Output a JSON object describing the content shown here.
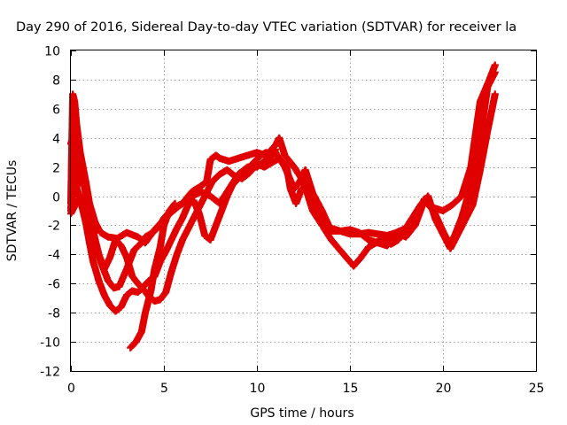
{
  "chart_data": {
    "type": "scatter",
    "title": "Day 290 of 2016, Sidereal Day-to-day VTEC variation (SDTVAR) for receiver la",
    "xlabel": "GPS time / hours",
    "ylabel": "SDTVAR / TECUs",
    "xlim": [
      0,
      25
    ],
    "ylim": [
      -12,
      10
    ],
    "xticks": [
      0,
      5,
      10,
      15,
      20,
      25
    ],
    "yticks": [
      -12,
      -10,
      -8,
      -6,
      -4,
      -2,
      0,
      2,
      4,
      6,
      8,
      10
    ],
    "grid": true,
    "marker": "plus",
    "colors": {
      "series": "#e00000",
      "grid": "#a0a0a0",
      "axis": "#000000"
    },
    "series": [
      {
        "color": "#e00000",
        "x": [
          0.0,
          0.1,
          0.2,
          0.3,
          0.5,
          0.8,
          1.0,
          1.3,
          1.6,
          2.0,
          2.5,
          3.0,
          3.6,
          4.0,
          4.5,
          5.0,
          5.5,
          6.0,
          6.5,
          7.0,
          7.3,
          7.5,
          7.8,
          8.0,
          8.5,
          9.0,
          9.5,
          10.0,
          10.5,
          11.0,
          11.2,
          11.5,
          12.0,
          12.5,
          13.0,
          13.5,
          14.0,
          14.5,
          15.0,
          15.5,
          16.0,
          16.5,
          17.0,
          17.5,
          18.0,
          18.5,
          19.0,
          19.5,
          20.0,
          20.5,
          21.0,
          21.5,
          22.0,
          22.5,
          22.8
        ],
        "y": [
          -0.5,
          7.0,
          6.5,
          5.0,
          3.0,
          1.0,
          -0.5,
          -1.8,
          -2.5,
          -2.8,
          -2.9,
          -2.5,
          -2.8,
          -3.2,
          -2.3,
          -1.6,
          -1.0,
          -0.5,
          0.3,
          0.7,
          1.0,
          2.5,
          2.8,
          2.6,
          2.4,
          2.6,
          2.8,
          3.0,
          2.8,
          3.5,
          4.0,
          2.8,
          2.0,
          1.0,
          -1.0,
          -2.0,
          -2.2,
          -2.4,
          -2.6,
          -2.6,
          -2.5,
          -2.6,
          -2.7,
          -2.5,
          -2.2,
          -1.5,
          -0.2,
          -0.8,
          -1.0,
          -0.6,
          0.0,
          2.0,
          6.5,
          8.0,
          9.0
        ]
      },
      {
        "color": "#e00000",
        "x": [
          0.0,
          0.4,
          0.8,
          1.0,
          1.3,
          1.6,
          2.0,
          2.3,
          2.6,
          3.0,
          3.4,
          3.8,
          4.0,
          4.4,
          4.8,
          5.0,
          5.5,
          6.0,
          6.5,
          7.0,
          7.5,
          8.0,
          8.5,
          9.0,
          9.5,
          10.0,
          10.5,
          11.0,
          11.5,
          12.0,
          12.3,
          12.6,
          13.0,
          13.5,
          14.0,
          14.5,
          15.0,
          15.5,
          16.0,
          16.5,
          17.0,
          17.5,
          18.0,
          18.5,
          19.0,
          19.5,
          20.0,
          20.3,
          20.6,
          21.0,
          21.3,
          21.6,
          22.0,
          22.4,
          22.8
        ],
        "y": [
          -1.2,
          -0.2,
          0.0,
          -1.0,
          -3.0,
          -4.5,
          -5.8,
          -6.3,
          -6.2,
          -5.0,
          -3.7,
          -3.2,
          -2.8,
          -2.5,
          -2.0,
          -1.5,
          -0.8,
          -0.5,
          0.0,
          0.3,
          0.0,
          -0.5,
          0.5,
          1.5,
          2.0,
          2.0,
          2.5,
          3.0,
          2.0,
          0.5,
          1.0,
          1.8,
          0.2,
          -1.0,
          -2.4,
          -2.4,
          -2.3,
          -2.5,
          -3.0,
          -3.2,
          -3.4,
          -2.5,
          -2.8,
          -2.0,
          -0.3,
          -1.0,
          -2.4,
          -3.2,
          -2.8,
          -1.5,
          -0.2,
          1.2,
          4.0,
          7.5,
          8.5
        ]
      },
      {
        "color": "#e00000",
        "x": [
          0.0,
          0.3,
          0.6,
          0.9,
          1.2,
          1.5,
          1.8,
          2.1,
          2.4,
          2.7,
          3.0,
          3.3,
          3.6,
          3.9,
          4.2,
          4.5,
          4.8,
          5.1,
          5.4,
          5.7,
          6.0,
          6.4,
          6.8,
          7.2,
          7.6,
          8.0,
          8.4,
          8.8,
          9.2,
          9.6,
          10.0,
          10.4,
          10.8,
          11.2,
          11.6,
          11.8,
          12.1,
          12.4,
          12.8,
          13.2,
          13.6,
          14.0,
          14.4,
          14.8,
          15.2,
          15.6,
          16.0,
          16.4,
          16.8,
          17.2,
          17.6,
          18.0,
          18.4,
          18.8,
          19.2,
          19.6,
          20.0,
          20.4,
          20.8,
          21.2,
          21.6,
          22.0,
          22.4,
          22.8
        ],
        "y": [
          -1.0,
          3.5,
          1.5,
          -0.5,
          -2.5,
          -4.0,
          -5.0,
          -4.2,
          -3.0,
          -3.4,
          -4.2,
          -5.5,
          -6.0,
          -6.4,
          -6.9,
          -7.2,
          -7.1,
          -6.6,
          -5.2,
          -4.0,
          -3.0,
          -2.0,
          -1.0,
          0.0,
          1.0,
          1.5,
          1.8,
          1.4,
          1.2,
          1.6,
          2.2,
          2.0,
          2.3,
          2.6,
          2.0,
          0.5,
          -0.5,
          0.5,
          0.8,
          -1.0,
          -2.2,
          -3.0,
          -3.6,
          -4.2,
          -4.8,
          -4.2,
          -3.5,
          -3.2,
          -2.8,
          -3.3,
          -3.0,
          -2.2,
          -1.4,
          -0.6,
          0.0,
          -1.6,
          -2.6,
          -3.6,
          -2.6,
          -1.6,
          -0.6,
          1.8,
          4.5,
          7.0
        ]
      },
      {
        "color": "#e00000",
        "x": [
          0.0,
          0.2,
          0.5,
          0.8,
          1.0,
          1.2,
          1.5,
          1.8,
          2.1,
          2.4,
          2.7,
          3.0,
          3.3,
          3.6,
          3.9,
          4.2,
          4.5,
          4.8,
          5.1,
          5.4,
          5.7,
          6.0,
          6.3,
          6.6,
          6.9,
          7.2,
          7.5,
          7.8,
          8.1,
          8.4,
          8.7,
          9.0,
          9.3,
          9.6,
          9.9,
          10.2,
          10.5,
          10.8,
          11.0
        ],
        "y": [
          -0.8,
          1.0,
          -0.2,
          -1.8,
          -3.2,
          -4.5,
          -5.8,
          -6.8,
          -7.5,
          -7.9,
          -7.6,
          -6.8,
          -6.5,
          -6.6,
          -6.2,
          -5.8,
          -5.5,
          -4.5,
          -3.8,
          -3.0,
          -2.2,
          -1.5,
          -0.6,
          -0.3,
          -1.2,
          -2.7,
          -3.0,
          -2.0,
          -1.0,
          0.0,
          0.8,
          1.2,
          1.6,
          2.0,
          2.4,
          2.8,
          3.0,
          2.8,
          3.2
        ]
      },
      {
        "color": "#e00000",
        "x": [
          3.2,
          3.5,
          3.8,
          4.0,
          4.3,
          4.5,
          4.8,
          5.0,
          5.3,
          5.6
        ],
        "y": [
          -10.4,
          -10.0,
          -9.3,
          -8.0,
          -6.5,
          -5.0,
          -3.5,
          -2.0,
          -1.0,
          -0.5
        ]
      },
      {
        "color": "#e00000",
        "x": [
          0.0,
          0.1,
          0.2,
          0.3,
          0.4,
          0.5
        ],
        "y": [
          3.6,
          4.0,
          2.0,
          0.5,
          1.2,
          2.4
        ]
      }
    ]
  }
}
